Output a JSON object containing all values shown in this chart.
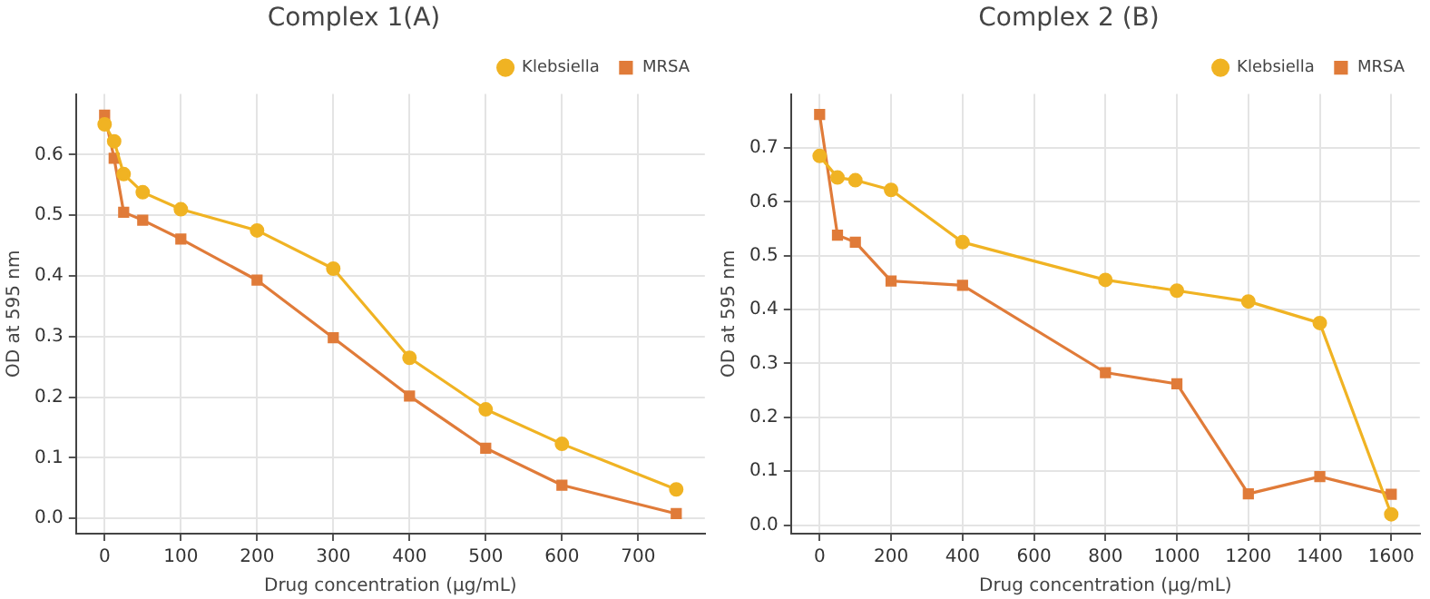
{
  "chart_data": [
    {
      "type": "line",
      "title": "Complex 1(A)",
      "xlabel": "Drug concentration (µg/mL)",
      "ylabel": "OD at 595 nm",
      "xlim": [
        -37.5,
        787.5
      ],
      "xticks": [
        0,
        100,
        200,
        300,
        400,
        500,
        600,
        700
      ],
      "ylim": [
        -0.025,
        0.7
      ],
      "yticks": [
        {
          "value": 0,
          "label": "0.0"
        },
        0.1,
        0.2,
        0.3,
        0.4,
        0.5,
        0.6
      ],
      "grid": true,
      "legend": "top right",
      "line_style": "solid",
      "series": [
        {
          "name": "Klebsiella",
          "color": "#f0b323",
          "marker": "circle",
          "x": [
            0,
            12.5,
            25,
            50,
            100,
            200,
            300,
            400,
            500,
            600,
            750
          ],
          "values": [
            0.65,
            0.622,
            0.568,
            0.538,
            0.51,
            0.475,
            0.412,
            0.265,
            0.18,
            0.123,
            0.048
          ]
        },
        {
          "name": "MRSA",
          "color": "#e07b39",
          "marker": "square",
          "x": [
            0,
            12.5,
            25,
            50,
            100,
            200,
            300,
            400,
            500,
            600,
            750
          ],
          "values": [
            0.665,
            0.594,
            0.505,
            0.492,
            0.461,
            0.393,
            0.298,
            0.202,
            0.116,
            0.055,
            0.008
          ]
        }
      ]
    },
    {
      "type": "line",
      "title": "Complex 2 (B)",
      "xlabel": "Drug concentration (µg/mL)",
      "ylabel": "OD at 595 nm",
      "xlim": [
        -80,
        1680
      ],
      "xticks": [
        0,
        200,
        400,
        600,
        800,
        1000,
        1200,
        1400,
        1600
      ],
      "ylim": [
        -0.016,
        0.8
      ],
      "yticks": [
        {
          "value": 0,
          "label": "0.0"
        },
        0.1,
        0.2,
        0.3,
        0.4,
        0.5,
        0.6,
        0.7
      ],
      "grid": true,
      "legend": "top right",
      "line_style": "solid",
      "series": [
        {
          "name": "Klebsiella",
          "color": "#f0b323",
          "marker": "circle",
          "x": [
            0,
            50,
            100,
            200,
            400,
            800,
            1000,
            1200,
            1400,
            1600
          ],
          "values": [
            0.685,
            0.645,
            0.64,
            0.622,
            0.525,
            0.455,
            0.435,
            0.415,
            0.375,
            0.02
          ]
        },
        {
          "name": "MRSA",
          "color": "#e07b39",
          "marker": "square",
          "x": [
            0,
            50,
            100,
            200,
            400,
            800,
            1000,
            1200,
            1400,
            1600
          ],
          "values": [
            0.762,
            0.538,
            0.525,
            0.453,
            0.445,
            0.283,
            0.262,
            0.058,
            0.09,
            0.057
          ]
        }
      ]
    }
  ]
}
